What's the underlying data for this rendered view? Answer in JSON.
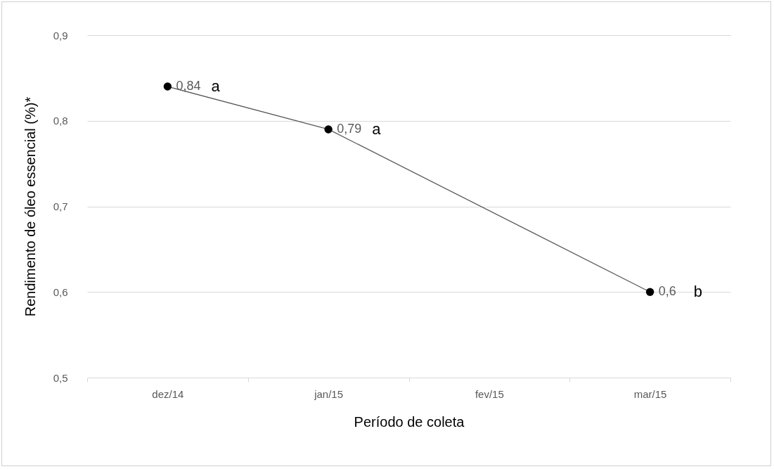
{
  "chart_data": {
    "type": "line",
    "xlabel": "Período de coleta",
    "ylabel": "Rendimento de óleo essencial (%)*",
    "categories": [
      "dez/14",
      "jan/15",
      "fev/15",
      "mar/15"
    ],
    "series": [
      {
        "color": "#000000",
        "values": [
          0.84,
          0.79,
          null,
          0.6
        ],
        "value_labels": [
          "0,84",
          "0,79",
          null,
          "0,6"
        ]
      }
    ],
    "ylim": [
      0.5,
      0.9
    ],
    "yticks": [
      {
        "value": 0.5,
        "label": "0,5"
      },
      {
        "value": 0.6,
        "label": "0,6"
      },
      {
        "value": 0.7,
        "label": "0,7"
      },
      {
        "value": 0.8,
        "label": "0,8"
      },
      {
        "value": 0.9,
        "label": "0,9"
      }
    ],
    "grid": "y",
    "marker": "circle",
    "line_style": "solid",
    "annotations": [
      {
        "text": "a",
        "x": "dez/14",
        "y": 0.84
      },
      {
        "text": "a",
        "x": "jan/15",
        "y": 0.79
      },
      {
        "text": "b",
        "x": "mar/15",
        "y": 0.6
      }
    ]
  }
}
